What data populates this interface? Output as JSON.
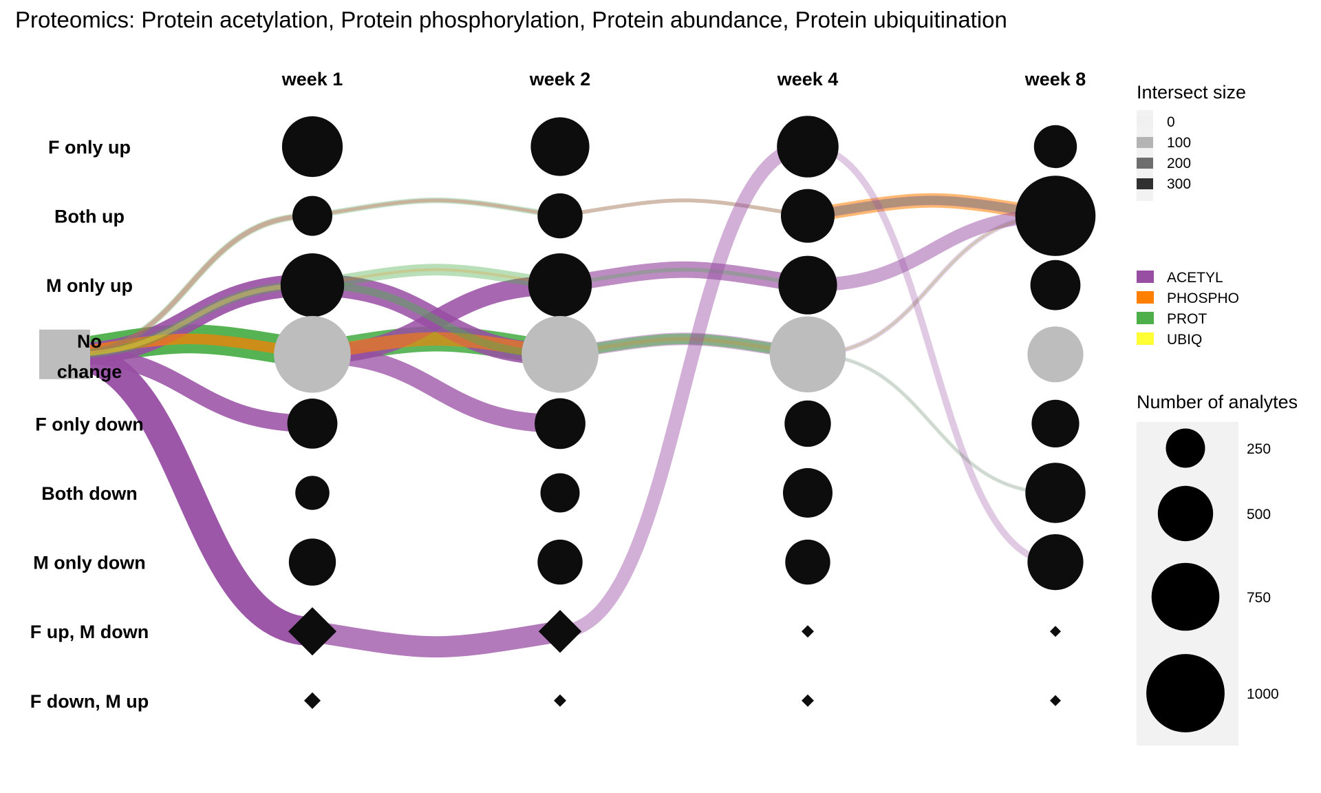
{
  "chart_data": {
    "type": "bubble-flow",
    "title": "Proteomics: Protein acetylation, Protein phosphorylation, Protein abundance, Protein ubiquitination",
    "columns": [
      "week 1",
      "week 2",
      "week 4",
      "week 8"
    ],
    "rows": [
      "F only up",
      "Both up",
      "M only up",
      "No change",
      "F only down",
      "Both down",
      "M only down",
      "F up, M down",
      "F down, M up"
    ],
    "start_node": {
      "row": "No change",
      "label": [
        "No",
        "change"
      ]
    },
    "nodes": [
      {
        "col": "week 1",
        "row": "F only up",
        "n": 600,
        "shape": "circle",
        "shade": "dark"
      },
      {
        "col": "week 1",
        "row": "Both up",
        "n": 260,
        "shape": "circle",
        "shade": "dark"
      },
      {
        "col": "week 1",
        "row": "M only up",
        "n": 660,
        "shape": "circle",
        "shade": "dark"
      },
      {
        "col": "week 1",
        "row": "No change",
        "n": 960,
        "shape": "circle",
        "shade": "grey"
      },
      {
        "col": "week 1",
        "row": "F only down",
        "n": 410,
        "shape": "circle",
        "shade": "dark"
      },
      {
        "col": "week 1",
        "row": "Both down",
        "n": 190,
        "shape": "circle",
        "shade": "dark"
      },
      {
        "col": "week 1",
        "row": "M only down",
        "n": 360,
        "shape": "circle",
        "shade": "dark"
      },
      {
        "col": "week 1",
        "row": "F up, M down",
        "n": 380,
        "shape": "diamond",
        "shade": "dark"
      },
      {
        "col": "week 1",
        "row": "F down, M up",
        "n": 45,
        "shape": "diamond",
        "shade": "dark"
      },
      {
        "col": "week 2",
        "row": "F only up",
        "n": 560,
        "shape": "circle",
        "shade": "dark"
      },
      {
        "col": "week 2",
        "row": "Both up",
        "n": 330,
        "shape": "circle",
        "shade": "dark"
      },
      {
        "col": "week 2",
        "row": "M only up",
        "n": 660,
        "shape": "circle",
        "shade": "dark"
      },
      {
        "col": "week 2",
        "row": "No change",
        "n": 960,
        "shape": "circle",
        "shade": "grey"
      },
      {
        "col": "week 2",
        "row": "F only down",
        "n": 420,
        "shape": "circle",
        "shade": "dark"
      },
      {
        "col": "week 2",
        "row": "Both down",
        "n": 250,
        "shape": "circle",
        "shade": "dark"
      },
      {
        "col": "week 2",
        "row": "M only down",
        "n": 330,
        "shape": "circle",
        "shade": "dark"
      },
      {
        "col": "week 2",
        "row": "F up, M down",
        "n": 300,
        "shape": "diamond",
        "shade": "dark"
      },
      {
        "col": "week 2",
        "row": "F down, M up",
        "n": 25,
        "shape": "diamond",
        "shade": "dark"
      },
      {
        "col": "week 4",
        "row": "F only up",
        "n": 620,
        "shape": "circle",
        "shade": "dark"
      },
      {
        "col": "week 4",
        "row": "Both up",
        "n": 470,
        "shape": "circle",
        "shade": "dark"
      },
      {
        "col": "week 4",
        "row": "M only up",
        "n": 560,
        "shape": "circle",
        "shade": "dark"
      },
      {
        "col": "week 4",
        "row": "No change",
        "n": 940,
        "shape": "circle",
        "shade": "grey"
      },
      {
        "col": "week 4",
        "row": "F only down",
        "n": 350,
        "shape": "circle",
        "shade": "dark"
      },
      {
        "col": "week 4",
        "row": "Both down",
        "n": 400,
        "shape": "circle",
        "shade": "dark"
      },
      {
        "col": "week 4",
        "row": "M only down",
        "n": 330,
        "shape": "circle",
        "shade": "dark"
      },
      {
        "col": "week 4",
        "row": "F up, M down",
        "n": 25,
        "shape": "diamond",
        "shade": "dark"
      },
      {
        "col": "week 4",
        "row": "F down, M up",
        "n": 25,
        "shape": "diamond",
        "shade": "dark"
      },
      {
        "col": "week 8",
        "row": "F only up",
        "n": 300,
        "shape": "circle",
        "shade": "dark"
      },
      {
        "col": "week 8",
        "row": "Both up",
        "n": 1050,
        "shape": "circle",
        "shade": "dark"
      },
      {
        "col": "week 8",
        "row": "M only up",
        "n": 410,
        "shape": "circle",
        "shade": "dark"
      },
      {
        "col": "week 8",
        "row": "No change",
        "n": 510,
        "shape": "circle",
        "shade": "grey"
      },
      {
        "col": "week 8",
        "row": "F only down",
        "n": 370,
        "shape": "circle",
        "shade": "dark"
      },
      {
        "col": "week 8",
        "row": "Both down",
        "n": 590,
        "shape": "circle",
        "shade": "dark"
      },
      {
        "col": "week 8",
        "row": "M only down",
        "n": 510,
        "shape": "circle",
        "shade": "dark"
      },
      {
        "col": "week 8",
        "row": "F up, M down",
        "n": 8,
        "shape": "diamond",
        "shade": "dark"
      },
      {
        "col": "week 8",
        "row": "F down, M up",
        "n": 8,
        "shape": "diamond",
        "shade": "dark"
      }
    ],
    "flows": [
      {
        "type": "PROT",
        "from_col": "start",
        "from_row": "No change",
        "to_row": "No change",
        "weight": 300,
        "opacity": 0.95
      },
      {
        "type": "ACETYL",
        "from_col": "start",
        "from_row": "No change",
        "to_row": "F up, M down",
        "weight": 300,
        "opacity": 0.95
      },
      {
        "type": "ACETYL",
        "from_col": "start",
        "from_row": "No change",
        "to_row": "M only up",
        "weight": 230,
        "opacity": 0.9
      },
      {
        "type": "ACETYL",
        "from_col": "start",
        "from_row": "No change",
        "to_row": "F only down",
        "weight": 180,
        "opacity": 0.85
      },
      {
        "type": "PHOSPHO",
        "from_col": "start",
        "from_row": "No change",
        "to_row": "No change",
        "weight": 110,
        "opacity": 0.7
      },
      {
        "type": "PROT",
        "from_col": "start",
        "from_row": "No change",
        "to_row": "M only up",
        "weight": 90,
        "opacity": 0.35
      },
      {
        "type": "PROT",
        "from_col": "start",
        "from_row": "No change",
        "to_row": "Both up",
        "weight": 70,
        "opacity": 0.3
      },
      {
        "type": "PHOSPHO",
        "from_col": "start",
        "from_row": "No change",
        "to_row": "Both up",
        "weight": 50,
        "opacity": 0.25
      },
      {
        "type": "ACETYL",
        "from_col": "start",
        "from_row": "No change",
        "to_row": "Both up",
        "weight": 50,
        "opacity": 0.25
      },
      {
        "type": "UBIQ",
        "from_col": "start",
        "from_row": "No change",
        "to_row": "M only up",
        "weight": 50,
        "opacity": 0.3
      },
      {
        "type": "PROT",
        "from_col": "week 1",
        "from_row": "No change",
        "to_row": "No change",
        "weight": 260,
        "opacity": 0.9
      },
      {
        "type": "ACETYL",
        "from_col": "week 1",
        "from_row": "M only up",
        "to_row": "No change",
        "weight": 230,
        "opacity": 0.85
      },
      {
        "type": "ACETYL",
        "from_col": "week 1",
        "from_row": "No change",
        "to_row": "M only up",
        "weight": 200,
        "opacity": 0.85
      },
      {
        "type": "ACETYL",
        "from_col": "week 1",
        "from_row": "No change",
        "to_row": "F only down",
        "weight": 190,
        "opacity": 0.75
      },
      {
        "type": "PHOSPHO",
        "from_col": "week 1",
        "from_row": "No change",
        "to_row": "No change",
        "weight": 140,
        "opacity": 0.6
      },
      {
        "type": "PROT",
        "from_col": "week 1",
        "from_row": "M only up",
        "to_row": "M only up",
        "weight": 120,
        "opacity": 0.4
      },
      {
        "type": "PROT",
        "from_col": "week 1",
        "from_row": "Both up",
        "to_row": "Both up",
        "weight": 60,
        "opacity": 0.3
      },
      {
        "type": "PROT",
        "from_col": "week 1",
        "from_row": "M only up",
        "to_row": "No change",
        "weight": 80,
        "opacity": 0.45
      },
      {
        "type": "ACETYL",
        "from_col": "week 1",
        "from_row": "Both up",
        "to_row": "Both up",
        "weight": 40,
        "opacity": 0.25
      },
      {
        "type": "PHOSPHO",
        "from_col": "week 1",
        "from_row": "Both up",
        "to_row": "Both up",
        "weight": 30,
        "opacity": 0.2
      },
      {
        "type": "PHOSPHO",
        "from_col": "week 1",
        "from_row": "M only up",
        "to_row": "M only up",
        "weight": 30,
        "opacity": 0.2
      },
      {
        "type": "ACETYL",
        "from_col": "week 1",
        "from_row": "F up, M down",
        "to_row": "F up, M down",
        "weight": 220,
        "opacity": 0.75
      },
      {
        "type": "ACETYL",
        "from_col": "week 2",
        "from_row": "M only up",
        "to_row": "M only up",
        "weight": 170,
        "opacity": 0.65
      },
      {
        "type": "ACETYL",
        "from_col": "week 2",
        "from_row": "No change",
        "to_row": "No change",
        "weight": 130,
        "opacity": 0.45
      },
      {
        "type": "PROT",
        "from_col": "week 2",
        "from_row": "No change",
        "to_row": "No change",
        "weight": 110,
        "opacity": 0.55
      },
      {
        "type": "PROT",
        "from_col": "week 2",
        "from_row": "M only up",
        "to_row": "M only up",
        "weight": 40,
        "opacity": 0.3
      },
      {
        "type": "PROT",
        "from_col": "week 2",
        "from_row": "Both up",
        "to_row": "Both up",
        "weight": 40,
        "opacity": 0.2
      },
      {
        "type": "PHOSPHO",
        "from_col": "week 2",
        "from_row": "Both up",
        "to_row": "Both up",
        "weight": 40,
        "opacity": 0.2
      },
      {
        "type": "ACETYL",
        "from_col": "week 2",
        "from_row": "Both up",
        "to_row": "Both up",
        "weight": 40,
        "opacity": 0.2
      },
      {
        "type": "PHOSPHO",
        "from_col": "week 2",
        "from_row": "No change",
        "to_row": "No change",
        "weight": 40,
        "opacity": 0.2
      },
      {
        "type": "ACETYL",
        "from_col": "week 2",
        "from_row": "F up, M down",
        "to_row": "F only up",
        "weight": 140,
        "opacity": 0.45
      },
      {
        "type": "PHOSPHO",
        "from_col": "week 4",
        "from_row": "Both up",
        "to_row": "Both up",
        "weight": 150,
        "opacity": 0.55
      },
      {
        "type": "PROT",
        "from_col": "week 4",
        "from_row": "Both up",
        "to_row": "Both up",
        "weight": 90,
        "opacity": 0.35
      },
      {
        "type": "ACETYL",
        "from_col": "week 4",
        "from_row": "M only up",
        "to_row": "Both up",
        "weight": 140,
        "opacity": 0.5
      },
      {
        "type": "ACETYL",
        "from_col": "week 4",
        "from_row": "Both up",
        "to_row": "Both up",
        "weight": 100,
        "opacity": 0.35
      },
      {
        "type": "ACETYL",
        "from_col": "week 4",
        "from_row": "No change",
        "to_row": "Both up",
        "weight": 50,
        "opacity": 0.25
      },
      {
        "type": "ACETYL",
        "from_col": "week 4",
        "from_row": "F only up",
        "to_row": "M only down",
        "weight": 70,
        "opacity": 0.3
      },
      {
        "type": "PROT",
        "from_col": "week 4",
        "from_row": "No change",
        "to_row": "Both down",
        "weight": 40,
        "opacity": 0.2
      },
      {
        "type": "PROT",
        "from_col": "week 4",
        "from_row": "No change",
        "to_row": "Both up",
        "weight": 30,
        "opacity": 0.15
      },
      {
        "type": "ACETYL",
        "from_col": "week 4",
        "from_row": "No change",
        "to_row": "Both down",
        "weight": 30,
        "opacity": 0.15
      },
      {
        "type": "PHOSPHO",
        "from_col": "week 4",
        "from_row": "No change",
        "to_row": "Both up",
        "weight": 20,
        "opacity": 0.12
      }
    ],
    "legend_color": {
      "title": "Intersect size",
      "ticks": [
        {
          "value": 0,
          "color": "#f0f0f0"
        },
        {
          "value": 100,
          "color": "#b4b4b4"
        },
        {
          "value": 200,
          "color": "#6e6e6e"
        },
        {
          "value": 300,
          "color": "#303030"
        }
      ]
    },
    "legend_type": [
      {
        "label": "ACETYL",
        "color": "#984ea3"
      },
      {
        "label": "PHOSPHO",
        "color": "#ff7f00"
      },
      {
        "label": "PROT",
        "color": "#4daf4a"
      },
      {
        "label": "UBIQ",
        "color": "#ffff33"
      }
    ],
    "legend_size": {
      "title": "Number of analytes",
      "values": [
        250,
        500,
        750,
        1000
      ]
    }
  }
}
